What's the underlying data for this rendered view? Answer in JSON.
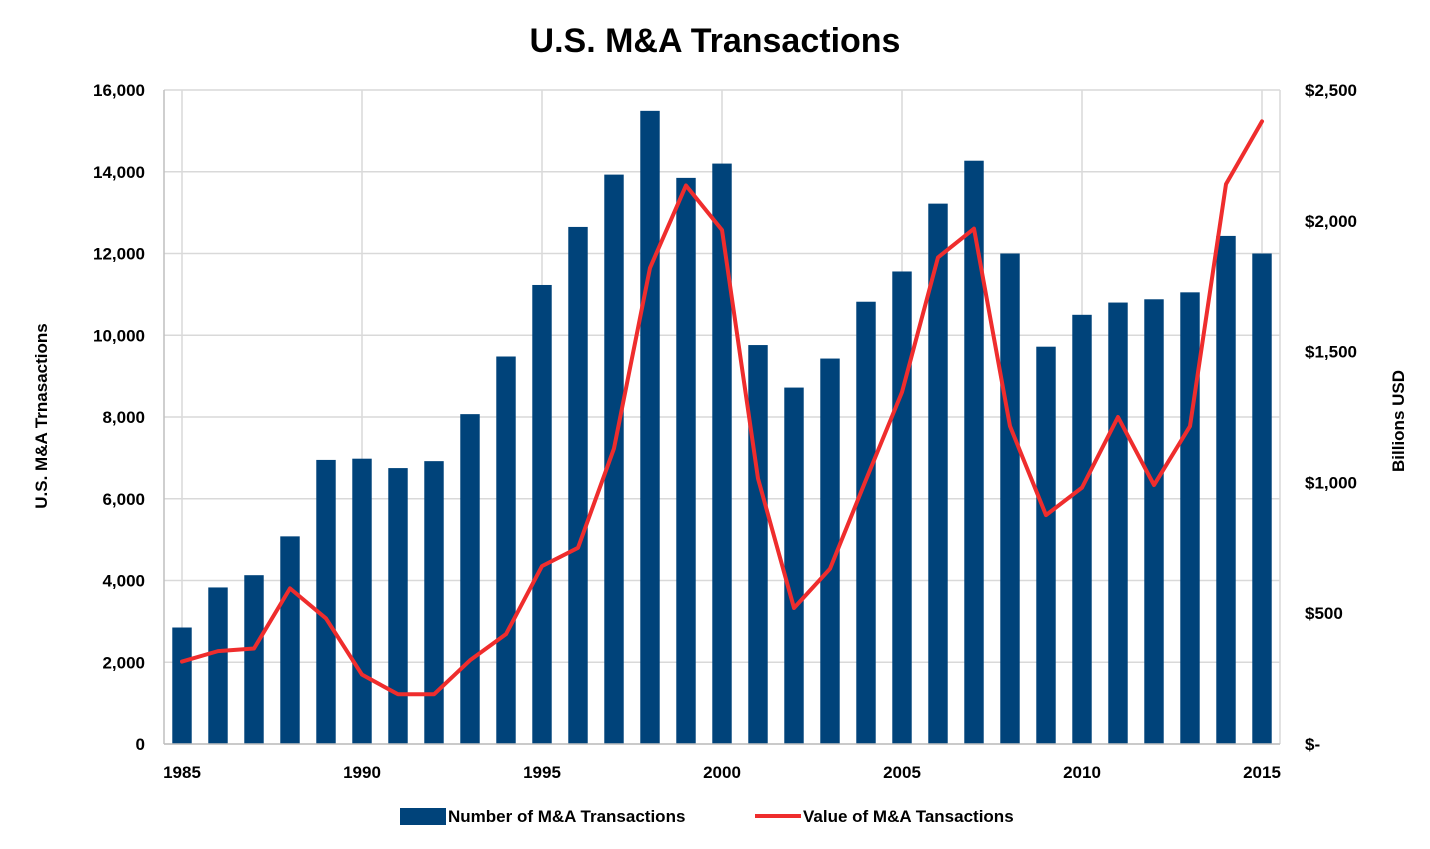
{
  "chart_data": {
    "type": "bar",
    "title": "U.S. M&A Transactions",
    "ylabel": "U.S. M&A Trnasactions",
    "y2label": "Billions USD",
    "ylim": [
      0,
      16000
    ],
    "y2lim": [
      0,
      2500
    ],
    "xlim": [
      1985,
      2015
    ],
    "yticks": [
      "0",
      "2,000",
      "4,000",
      "6,000",
      "8,000",
      "10,000",
      "12,000",
      "14,000",
      "16,000"
    ],
    "y2ticks": [
      "$-",
      "$500",
      "$1,000",
      "$1,500",
      "$2,000",
      "$2,500"
    ],
    "xticks": [
      "1985",
      "1990",
      "1995",
      "2000",
      "2005",
      "2010",
      "2015"
    ],
    "grid": true,
    "legend_position": "bottom",
    "x": [
      1985,
      1986,
      1987,
      1988,
      1989,
      1990,
      1991,
      1992,
      1993,
      1994,
      1995,
      1996,
      1997,
      1998,
      1999,
      2000,
      2001,
      2002,
      2003,
      2004,
      2005,
      2006,
      2007,
      2008,
      2009,
      2010,
      2011,
      2012,
      2013,
      2014,
      2015
    ],
    "series": [
      {
        "name": "Number of M&A Transactions",
        "type": "bar",
        "axis": "left",
        "color": "#00437a",
        "values": [
          2850,
          3830,
          4130,
          5080,
          6950,
          6980,
          6750,
          6920,
          8070,
          9480,
          11230,
          12650,
          13930,
          15490,
          13850,
          14200,
          9760,
          8720,
          9430,
          10820,
          11560,
          13220,
          14270,
          12000,
          9720,
          10500,
          10800,
          10880,
          11050,
          12430,
          12000
        ]
      },
      {
        "name": "Value of M&A Tansactions",
        "type": "line",
        "axis": "right",
        "color": "#ef2d2d",
        "values": [
          315,
          355,
          365,
          595,
          480,
          265,
          190,
          190,
          320,
          420,
          680,
          750,
          1130,
          1820,
          2135,
          1965,
          1015,
          520,
          670,
          1010,
          1345,
          1860,
          1970,
          1215,
          875,
          980,
          1250,
          990,
          1215,
          2140,
          2380
        ]
      }
    ]
  }
}
